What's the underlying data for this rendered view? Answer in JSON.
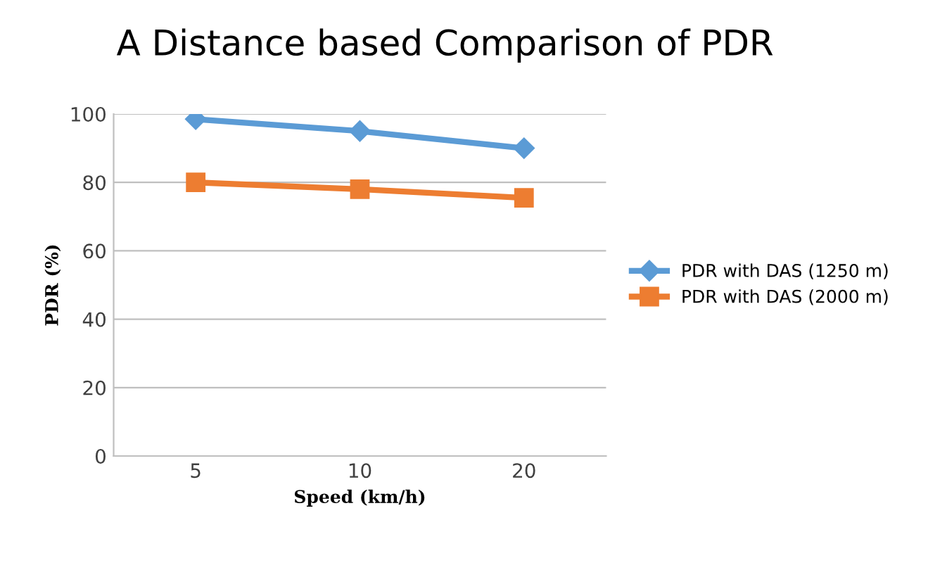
{
  "chart_data": {
    "type": "line",
    "title": "A Distance based Comparison of PDR",
    "xlabel": "Speed (km/h)",
    "ylabel": "PDR (%)",
    "categories": [
      "5",
      "10",
      "20"
    ],
    "series": [
      {
        "name": "PDR with DAS (1250 m)",
        "color": "#5b9bd5",
        "values": [
          98.5,
          95,
          90
        ],
        "marker": "diamond"
      },
      {
        "name": "PDR with DAS (2000 m)",
        "color": "#ed7d31",
        "values": [
          80,
          78,
          75.5
        ],
        "marker": "square"
      }
    ],
    "ylim": [
      0,
      100
    ],
    "yticks": [
      0,
      20,
      40,
      60,
      80,
      100
    ],
    "grid": "y",
    "legend": "right"
  }
}
